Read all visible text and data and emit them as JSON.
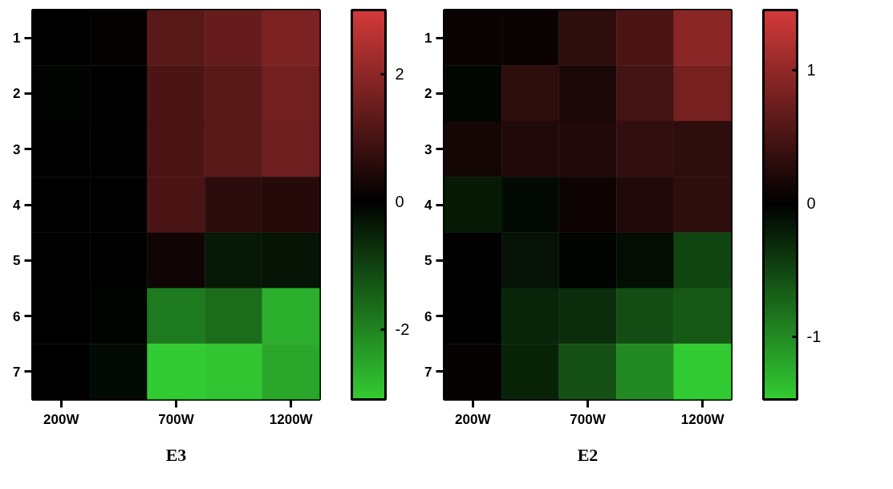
{
  "chart_data": [
    {
      "type": "heatmap",
      "title": "E3",
      "categories": [
        "200W",
        null,
        "700W",
        null,
        "1200W"
      ],
      "y_categories": [
        "1",
        "2",
        "3",
        "4",
        "5",
        "6",
        "7"
      ],
      "cells": [
        [
          0,
          0.05,
          1.27,
          1.44,
          1.74
        ],
        [
          -0.05,
          0,
          1.09,
          1.27,
          1.61
        ],
        [
          0,
          0,
          1.06,
          1.27,
          1.56
        ],
        [
          0,
          0,
          1.06,
          0.64,
          0.54
        ],
        [
          0,
          0,
          0.23,
          -0.36,
          -0.3
        ],
        [
          0,
          -0.05,
          -1.85,
          -1.63,
          -2.66
        ],
        [
          0,
          -0.15,
          -3.1,
          -3.0,
          -2.55
        ]
      ],
      "clim": [
        -3.1,
        3.0
      ],
      "cticks": [
        -2,
        0,
        2
      ],
      "colors": [
        "#33cc33",
        "#000000",
        "#d43a3a"
      ]
    },
    {
      "type": "heatmap",
      "title": "E2",
      "categories": [
        "200W",
        null,
        "700W",
        null,
        "1200W"
      ],
      "y_categories": [
        "1",
        "2",
        "3",
        "4",
        "5",
        "6",
        "7"
      ],
      "cells": [
        [
          0.07,
          0.08,
          0.32,
          0.52,
          0.94
        ],
        [
          -0.05,
          0.32,
          0.18,
          0.46,
          0.8
        ],
        [
          0.14,
          0.22,
          0.22,
          0.35,
          0.31
        ],
        [
          -0.19,
          -0.07,
          0.1,
          0.22,
          0.32
        ],
        [
          0,
          -0.13,
          -0.03,
          -0.1,
          -0.49
        ],
        [
          0,
          -0.27,
          -0.32,
          -0.55,
          -0.63
        ],
        [
          0.04,
          -0.24,
          -0.57,
          -1.0,
          -1.47
        ]
      ],
      "clim": [
        -1.47,
        1.45
      ],
      "cticks": [
        -1,
        0,
        1
      ],
      "colors": [
        "#33cc33",
        "#000000",
        "#d43a3a"
      ]
    }
  ]
}
